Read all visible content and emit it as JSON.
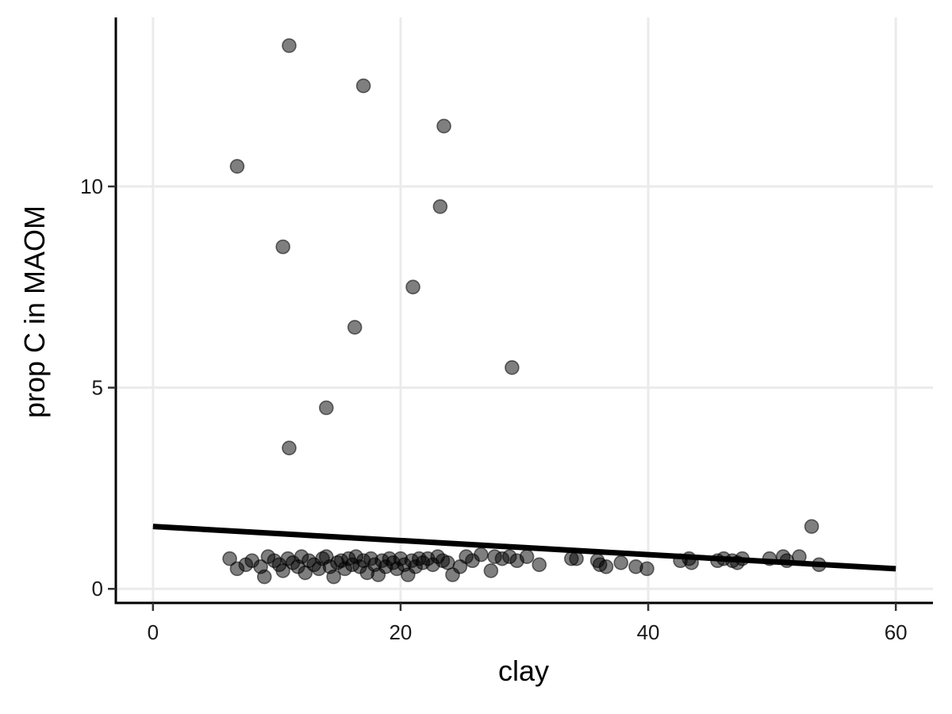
{
  "chart_data": {
    "type": "scatter",
    "xlabel": "clay",
    "ylabel": "prop C in MAOM",
    "xlim": [
      -3,
      63
    ],
    "ylim": [
      -0.35,
      14.2
    ],
    "x_ticks": [
      0,
      20,
      40,
      60
    ],
    "y_ticks": [
      0,
      5,
      10
    ],
    "x_tick_labels": [
      "0",
      "20",
      "40",
      "60"
    ],
    "y_tick_labels": [
      "0",
      "5",
      "10"
    ],
    "grid": true,
    "legend": "none",
    "point_color": "#000000",
    "point_opacity": 0.5,
    "fit_line": {
      "x": [
        0,
        60
      ],
      "y": [
        1.55,
        0.5
      ],
      "color": "#000000"
    },
    "points": [
      {
        "x": 11.0,
        "y": 13.5
      },
      {
        "x": 17.0,
        "y": 12.5
      },
      {
        "x": 23.5,
        "y": 11.5
      },
      {
        "x": 6.8,
        "y": 10.5
      },
      {
        "x": 23.2,
        "y": 9.5
      },
      {
        "x": 10.5,
        "y": 8.5
      },
      {
        "x": 21.0,
        "y": 7.5
      },
      {
        "x": 16.3,
        "y": 6.5
      },
      {
        "x": 29.0,
        "y": 5.5
      },
      {
        "x": 14.0,
        "y": 4.5
      },
      {
        "x": 11.0,
        "y": 3.5
      },
      {
        "x": 53.2,
        "y": 1.55
      },
      {
        "x": 6.2,
        "y": 0.75
      },
      {
        "x": 6.8,
        "y": 0.5
      },
      {
        "x": 7.5,
        "y": 0.6
      },
      {
        "x": 8.0,
        "y": 0.7
      },
      {
        "x": 8.7,
        "y": 0.55
      },
      {
        "x": 9.0,
        "y": 0.3
      },
      {
        "x": 9.3,
        "y": 0.8
      },
      {
        "x": 9.8,
        "y": 0.7
      },
      {
        "x": 10.2,
        "y": 0.6
      },
      {
        "x": 10.5,
        "y": 0.45
      },
      {
        "x": 10.9,
        "y": 0.75
      },
      {
        "x": 11.3,
        "y": 0.65
      },
      {
        "x": 11.7,
        "y": 0.55
      },
      {
        "x": 12.0,
        "y": 0.8
      },
      {
        "x": 12.3,
        "y": 0.4
      },
      {
        "x": 12.6,
        "y": 0.7
      },
      {
        "x": 13.0,
        "y": 0.6
      },
      {
        "x": 13.4,
        "y": 0.5
      },
      {
        "x": 13.7,
        "y": 0.75
      },
      {
        "x": 14.0,
        "y": 0.8
      },
      {
        "x": 14.3,
        "y": 0.55
      },
      {
        "x": 14.6,
        "y": 0.3
      },
      {
        "x": 14.9,
        "y": 0.65
      },
      {
        "x": 15.2,
        "y": 0.7
      },
      {
        "x": 15.5,
        "y": 0.5
      },
      {
        "x": 15.8,
        "y": 0.75
      },
      {
        "x": 16.1,
        "y": 0.6
      },
      {
        "x": 16.4,
        "y": 0.8
      },
      {
        "x": 16.7,
        "y": 0.55
      },
      {
        "x": 17.0,
        "y": 0.7
      },
      {
        "x": 17.3,
        "y": 0.4
      },
      {
        "x": 17.6,
        "y": 0.75
      },
      {
        "x": 17.9,
        "y": 0.6
      },
      {
        "x": 18.2,
        "y": 0.35
      },
      {
        "x": 18.5,
        "y": 0.7
      },
      {
        "x": 18.8,
        "y": 0.55
      },
      {
        "x": 19.1,
        "y": 0.75
      },
      {
        "x": 19.4,
        "y": 0.65
      },
      {
        "x": 19.7,
        "y": 0.5
      },
      {
        "x": 20.0,
        "y": 0.75
      },
      {
        "x": 20.3,
        "y": 0.6
      },
      {
        "x": 20.6,
        "y": 0.35
      },
      {
        "x": 20.9,
        "y": 0.7
      },
      {
        "x": 21.2,
        "y": 0.55
      },
      {
        "x": 21.5,
        "y": 0.75
      },
      {
        "x": 21.8,
        "y": 0.65
      },
      {
        "x": 22.2,
        "y": 0.75
      },
      {
        "x": 22.6,
        "y": 0.6
      },
      {
        "x": 23.0,
        "y": 0.8
      },
      {
        "x": 23.4,
        "y": 0.7
      },
      {
        "x": 23.8,
        "y": 0.65
      },
      {
        "x": 24.2,
        "y": 0.35
      },
      {
        "x": 24.8,
        "y": 0.55
      },
      {
        "x": 25.3,
        "y": 0.8
      },
      {
        "x": 25.8,
        "y": 0.7
      },
      {
        "x": 26.5,
        "y": 0.85
      },
      {
        "x": 27.3,
        "y": 0.45
      },
      {
        "x": 27.6,
        "y": 0.8
      },
      {
        "x": 28.2,
        "y": 0.75
      },
      {
        "x": 28.8,
        "y": 0.8
      },
      {
        "x": 29.4,
        "y": 0.7
      },
      {
        "x": 30.2,
        "y": 0.8
      },
      {
        "x": 31.2,
        "y": 0.6
      },
      {
        "x": 33.8,
        "y": 0.75
      },
      {
        "x": 34.2,
        "y": 0.75
      },
      {
        "x": 35.9,
        "y": 0.7
      },
      {
        "x": 36.1,
        "y": 0.6
      },
      {
        "x": 36.6,
        "y": 0.55
      },
      {
        "x": 37.8,
        "y": 0.65
      },
      {
        "x": 39.0,
        "y": 0.55
      },
      {
        "x": 39.9,
        "y": 0.5
      },
      {
        "x": 42.6,
        "y": 0.7
      },
      {
        "x": 43.3,
        "y": 0.75
      },
      {
        "x": 43.5,
        "y": 0.65
      },
      {
        "x": 45.6,
        "y": 0.7
      },
      {
        "x": 46.1,
        "y": 0.75
      },
      {
        "x": 46.8,
        "y": 0.7
      },
      {
        "x": 47.2,
        "y": 0.65
      },
      {
        "x": 47.6,
        "y": 0.75
      },
      {
        "x": 49.8,
        "y": 0.75
      },
      {
        "x": 50.9,
        "y": 0.8
      },
      {
        "x": 51.2,
        "y": 0.7
      },
      {
        "x": 52.2,
        "y": 0.8
      },
      {
        "x": 53.8,
        "y": 0.6
      }
    ]
  }
}
